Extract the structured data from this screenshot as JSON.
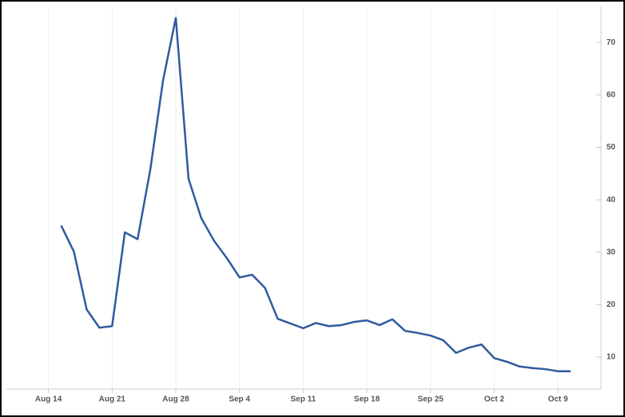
{
  "chart_data": {
    "type": "line",
    "x": [
      "Aug 15",
      "Aug 16",
      "Aug 17",
      "Aug 18",
      "Aug 21",
      "Aug 22",
      "Aug 23",
      "Aug 24",
      "Aug 25",
      "Aug 28",
      "Aug 29",
      "Aug 30",
      "Aug 31",
      "Sep 1",
      "Sep 4",
      "Sep 5",
      "Sep 6",
      "Sep 7",
      "Sep 8",
      "Sep 11",
      "Sep 12",
      "Sep 13",
      "Sep 14",
      "Sep 15",
      "Sep 18",
      "Sep 19",
      "Sep 20",
      "Sep 21",
      "Sep 22",
      "Sep 25",
      "Sep 26",
      "Sep 27",
      "Sep 28",
      "Sep 29",
      "Oct 2",
      "Oct 3",
      "Oct 4",
      "Oct 5",
      "Oct 6",
      "Oct 9",
      "Oct 10"
    ],
    "series": [
      {
        "color": "#2f5b9e",
        "values": [
          35.1,
          30.1,
          19.1,
          15.6,
          15.9,
          33.8,
          32.5,
          45.8,
          62.8,
          74.7,
          44.0,
          36.5,
          32.2,
          28.9,
          25.2,
          25.7,
          23.2,
          17.3,
          16.4,
          15.5,
          16.5,
          15.9,
          16.1,
          16.7,
          17.0,
          16.1,
          17.2,
          15.0,
          14.6,
          14.1,
          13.2,
          10.8,
          11.8,
          12.4,
          9.8,
          9.1,
          8.2,
          7.9,
          7.7,
          7.3,
          7.3
        ]
      }
    ],
    "xlim": [
      -4.3,
      40.5
    ],
    "xticks": [
      {
        "value": -1,
        "label": "Aug 14"
      },
      {
        "value": 4,
        "label": "Aug 21"
      },
      {
        "value": 9,
        "label": "Aug 28"
      },
      {
        "value": 14,
        "label": "Sep 4"
      },
      {
        "value": 19,
        "label": "Sep 11"
      },
      {
        "value": 24,
        "label": "Sep 18"
      },
      {
        "value": 29,
        "label": "Sep 25"
      },
      {
        "value": 34,
        "label": "Oct 2"
      },
      {
        "value": 39,
        "label": "Oct 9"
      }
    ],
    "ylim": [
      3.9,
      76.9
    ],
    "yticks": [
      10,
      20,
      30,
      40,
      50,
      60,
      70
    ],
    "grid": true
  }
}
